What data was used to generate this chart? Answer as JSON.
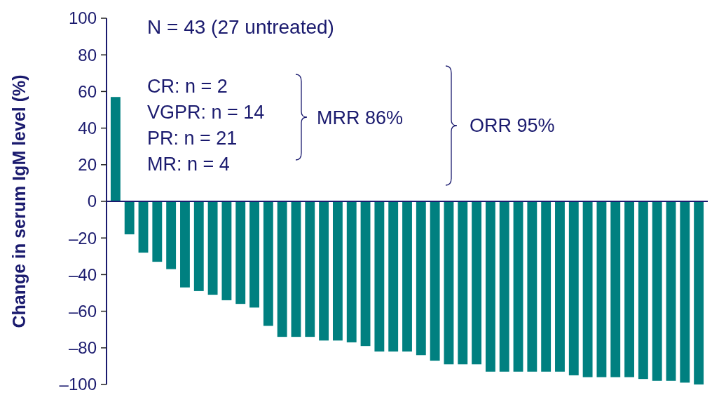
{
  "chart_data": {
    "type": "bar",
    "ylabel": "Change in serum IgM level (%)",
    "categories": [
      null,
      null,
      null,
      null,
      null,
      null,
      null,
      null,
      null,
      null,
      null,
      null,
      null,
      null,
      null,
      null,
      null,
      null,
      null,
      null,
      null,
      null,
      null,
      null,
      null,
      null,
      null,
      null,
      null,
      null,
      null,
      null,
      null,
      null,
      null,
      null,
      null,
      null,
      null,
      null,
      null,
      null,
      null
    ],
    "values": [
      57,
      -18,
      -28,
      -33,
      -37,
      -47,
      -49,
      -51,
      -54,
      -56,
      -58,
      -68,
      -74,
      -74,
      -74,
      -76,
      -76,
      -77,
      -79,
      -82,
      -82,
      -82,
      -84,
      -87,
      -89,
      -89,
      -89,
      -93,
      -93,
      -93,
      -93,
      -93,
      -93,
      -95,
      -96,
      -96,
      -96,
      -96,
      -97,
      -98,
      -98,
      -99,
      -100
    ],
    "color": "#008080",
    "ylim": [
      -100,
      100
    ],
    "yticks": [
      {
        "value": -100,
        "label": "–100"
      },
      {
        "value": -80,
        "label": "–80"
      },
      {
        "value": -60,
        "label": "–60"
      },
      {
        "value": -40,
        "label": "–40"
      },
      {
        "value": -20,
        "label": "–20"
      },
      0,
      20,
      40,
      60,
      80,
      100
    ],
    "tick_labels": "y",
    "grid": false,
    "ref_lines": [
      {
        "axis": "y",
        "value": 0,
        "color": "#1a1a6e"
      }
    ],
    "annotations": [
      "N = 43 (27 untreated)",
      "CR: n = 2",
      "VGPR: n = 14",
      "PR: n = 21",
      "MR: n = 4",
      "MRR 86%",
      "ORR 95%"
    ]
  }
}
